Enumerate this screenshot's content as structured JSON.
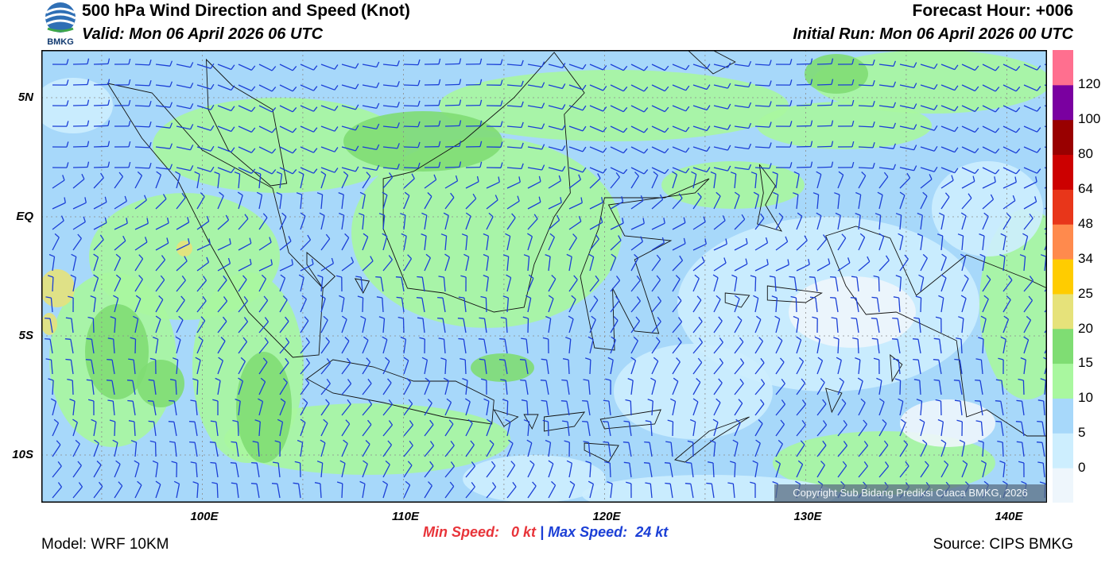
{
  "header": {
    "title": "500 hPa Wind Direction and Speed (Knot)",
    "valid": "Valid: Mon 06 April 2026 06 UTC",
    "forecast_hour": "Forecast Hour: +006",
    "initial_run": "Initial Run: Mon 06 April 2026 00 UTC"
  },
  "logo": {
    "text": "BMKG"
  },
  "map": {
    "lat_labels": [
      "5N",
      "EQ",
      "5S",
      "10S"
    ],
    "lon_labels": [
      "100E",
      "110E",
      "120E",
      "130E",
      "140E"
    ],
    "lon_range": [
      92,
      142
    ],
    "lat_range": [
      -12,
      7
    ],
    "copyright": "Copyright Sub Bidang Prediksi Cuaca BMKG, 2026",
    "barb_color": "#1b3fd6"
  },
  "colorbar": {
    "labels": [
      "0",
      "5",
      "10",
      "15",
      "20",
      "25",
      "34",
      "48",
      "64",
      "80",
      "100",
      "120"
    ],
    "colors": [
      "#eef6fc",
      "#cdeefe",
      "#a7d8fa",
      "#a9f79f",
      "#7fdd73",
      "#e6e27a",
      "#ffcc00",
      "#ff8a4d",
      "#e8361a",
      "#cc0000",
      "#990000",
      "#7a00a0",
      "#ff6f8f"
    ]
  },
  "footer": {
    "model": "Model: WRF 10KM",
    "source": "Source: CIPS BMKG",
    "min_label": "Min Speed:",
    "min_value": "0 kt",
    "separator": "|",
    "max_label": "Max Speed:",
    "max_value": "24 kt"
  }
}
